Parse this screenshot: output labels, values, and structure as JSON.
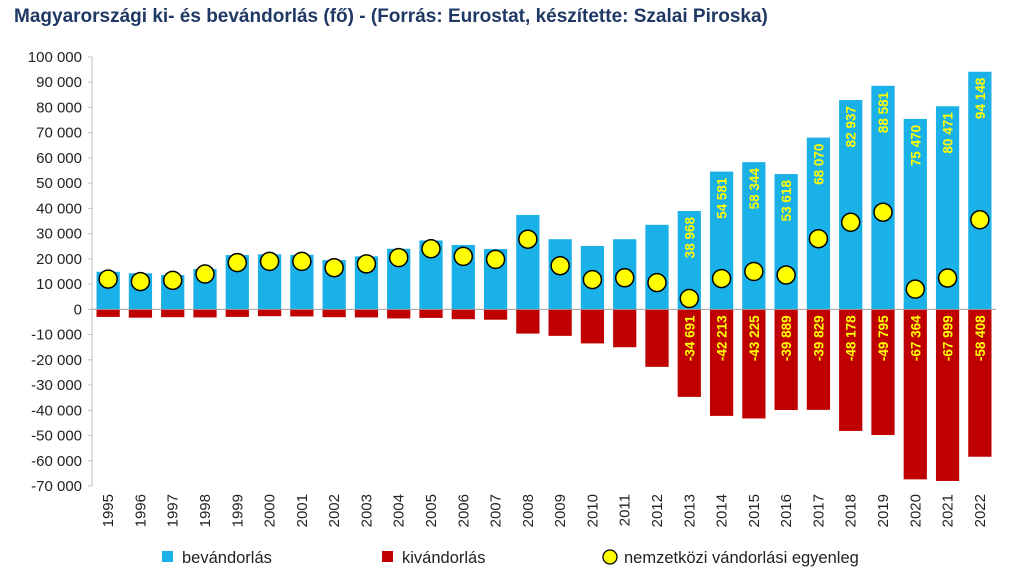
{
  "chart_data": {
    "type": "bar",
    "title": "Magyarországi ki- és bevándorlás (fő) - (Forrás: Eurostat, készítette: Szalai Piroska)",
    "xlabel": "",
    "ylabel": "",
    "ylim": [
      -70000,
      100000
    ],
    "ytick_step": 10000,
    "ytick_labels": [
      "-70 000",
      "-60 000",
      "-50 000",
      "-40 000",
      "-30 000",
      "-20 000",
      "-10 000",
      "0",
      "10 000",
      "20 000",
      "30 000",
      "40 000",
      "50 000",
      "60 000",
      "70 000",
      "80 000",
      "90 000",
      "100 000"
    ],
    "grid": false,
    "legend": "bottom",
    "categories": [
      "1995",
      "1996",
      "1997",
      "1998",
      "1999",
      "2000",
      "2001",
      "2002",
      "2003",
      "2004",
      "2005",
      "2006",
      "2007",
      "2008",
      "2009",
      "2010",
      "2011",
      "2012",
      "2013",
      "2014",
      "2015",
      "2016",
      "2017",
      "2018",
      "2019",
      "2020",
      "2021",
      "2022"
    ],
    "series": [
      {
        "name": "bevándorlás",
        "color": "#1ab0e8",
        "kind": "bar",
        "values": [
          14900,
          14300,
          13600,
          16000,
          21500,
          21800,
          21600,
          19500,
          21000,
          24000,
          27300,
          25500,
          23900,
          37400,
          27800,
          25100,
          27800,
          33500,
          38968,
          54581,
          58344,
          53618,
          68070,
          82937,
          88581,
          75470,
          80471,
          94148
        ],
        "labels": [
          "",
          "",
          "",
          "",
          "",
          "",
          "",
          "",
          "",
          "",
          "",
          "",
          "",
          "",
          "",
          "",
          "",
          "",
          "38 968",
          "54 581",
          "58 344",
          "53 618",
          "68 070",
          "82 937",
          "88 581",
          "75 470",
          "80 471",
          "94 148"
        ]
      },
      {
        "name": "kivándorlás",
        "color": "#c00000",
        "kind": "bar",
        "values": [
          -3000,
          -3300,
          -3100,
          -3200,
          -3000,
          -2700,
          -2800,
          -3100,
          -3200,
          -3600,
          -3400,
          -3900,
          -4100,
          -9600,
          -10500,
          -13500,
          -15000,
          -22800,
          -34691,
          -42213,
          -43225,
          -39889,
          -39829,
          -48178,
          -49795,
          -67364,
          -67999,
          -58408
        ],
        "labels": [
          "",
          "",
          "",
          "",
          "",
          "",
          "",
          "",
          "",
          "",
          "",
          "",
          "",
          "",
          "",
          "",
          "",
          "",
          "-34 691",
          "-42 213",
          "-43 225",
          "-39 889",
          "-39 829",
          "-48 178",
          "-49 795",
          "-67 364",
          "-67 999",
          "-58 408"
        ]
      },
      {
        "name": "nemzetközi vándorlási egyenleg",
        "color": "#ffff00",
        "kind": "marker",
        "values": [
          12000,
          11000,
          11500,
          14000,
          18500,
          19000,
          19000,
          16500,
          18000,
          20500,
          24000,
          21000,
          19800,
          27800,
          17300,
          11800,
          12500,
          10600,
          4300,
          12200,
          15000,
          13600,
          28000,
          34500,
          38500,
          8000,
          12400,
          35500
        ]
      }
    ]
  }
}
